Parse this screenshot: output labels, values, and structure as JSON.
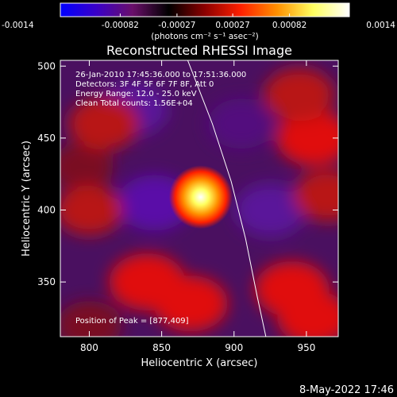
{
  "footer_timestamp": "8-May-2022 17:46",
  "colorbar": {
    "ticks": [
      "-0.0014",
      "-0.00082",
      "-0.00027",
      "0.00027",
      "0.00082",
      "0.0014"
    ],
    "tick_values": [
      -0.0014,
      -0.00082,
      -0.00027,
      0.00027,
      0.00082,
      0.0014
    ],
    "range": [
      -0.0014,
      0.0014
    ],
    "unit_label": "(photons cm⁻² s⁻¹ asec⁻²)",
    "colors": [
      "#0000ff",
      "#3a00c8",
      "#6a0f6a",
      "#000000",
      "#8c0000",
      "#ff2000",
      "#ff9000",
      "#ffff60",
      "#ffffff"
    ]
  },
  "image": {
    "title": "Reconstructed RHESSI Image",
    "info": [
      "26-Jan-2010 17:45:36.000 to 17:51:36.000",
      "Detectors: 3F 4F 5F 6F 7F 8F, Att 0",
      "Energy Range: 12.0 - 25.0 keV",
      "Clean     Total counts: 1.56E+04"
    ],
    "peak_text": "Position of Peak = [877,409]"
  },
  "chart_data": {
    "type": "heatmap",
    "title": "Reconstructed RHESSI Image",
    "xlabel": "Heliocentric X (arcsec)",
    "ylabel": "Heliocentric Y (arcsec)",
    "xlim": [
      780,
      972
    ],
    "ylim": [
      312,
      504
    ],
    "x_ticks": [
      800,
      850,
      900,
      950
    ],
    "y_ticks": [
      350,
      400,
      450,
      500
    ],
    "peak": [
      877,
      409
    ],
    "limb_curve": [
      [
        868,
        504
      ],
      [
        885,
        460
      ],
      [
        898,
        420
      ],
      [
        908,
        380
      ],
      [
        916,
        340
      ],
      [
        922,
        312
      ]
    ],
    "grid": false,
    "cells": [
      {
        "x": 830,
        "y": 470,
        "level": -0.35
      },
      {
        "x": 905,
        "y": 460,
        "level": -0.25
      },
      {
        "x": 925,
        "y": 400,
        "level": -0.35
      },
      {
        "x": 845,
        "y": 405,
        "level": -0.45
      },
      {
        "x": 795,
        "y": 430,
        "level": 0.15
      },
      {
        "x": 810,
        "y": 460,
        "level": 0.35
      },
      {
        "x": 800,
        "y": 400,
        "level": 0.25
      },
      {
        "x": 955,
        "y": 450,
        "level": 0.45
      },
      {
        "x": 945,
        "y": 480,
        "level": 0.35
      },
      {
        "x": 965,
        "y": 410,
        "level": 0.3
      },
      {
        "x": 840,
        "y": 350,
        "level": 0.5
      },
      {
        "x": 870,
        "y": 335,
        "level": 0.45
      },
      {
        "x": 940,
        "y": 345,
        "level": 0.45
      },
      {
        "x": 955,
        "y": 325,
        "level": 0.4
      },
      {
        "x": 800,
        "y": 320,
        "level": 0.2
      },
      {
        "x": 877,
        "y": 409,
        "level": 1.0
      }
    ]
  }
}
